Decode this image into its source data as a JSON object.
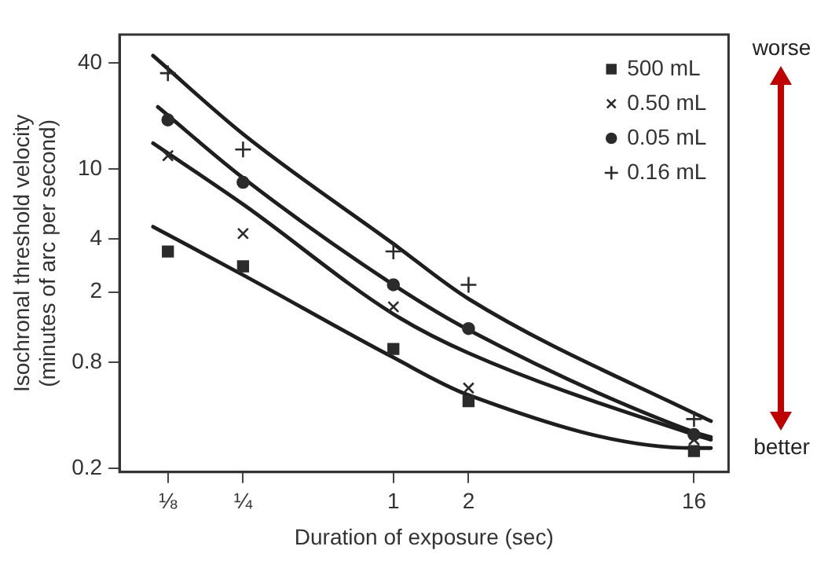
{
  "chart_data": {
    "type": "scatter",
    "xlabel": "Duration of exposure (sec)",
    "ylabel": "Isochronal threshold velocity\n(minutes of arc per second)",
    "log": "xy",
    "x": [
      0.125,
      0.25,
      1,
      2,
      16
    ],
    "xlim": [
      0.08,
      22
    ],
    "xticks": [
      {
        "value": 0.125,
        "label": "⅛"
      },
      {
        "value": 0.25,
        "label": "¼"
      },
      1,
      2,
      16
    ],
    "ylim": [
      0.19,
      58
    ],
    "yticks": [
      0.2,
      0.8,
      2,
      4,
      10,
      40
    ],
    "legend": "top right",
    "series": [
      {
        "name": "500 mL",
        "color": "#2b2b2b",
        "marker": "square",
        "values": [
          3.4,
          2.8,
          0.95,
          0.48,
          0.25
        ]
      },
      {
        "name": "0.50 mL",
        "color": "#2b2b2b",
        "marker": "x",
        "values": [
          11.9,
          4.3,
          1.65,
          0.57,
          0.29
        ]
      },
      {
        "name": "0.05 mL",
        "color": "#2b2b2b",
        "marker": "circle",
        "values": [
          19,
          8.4,
          2.2,
          1.24,
          0.31
        ]
      },
      {
        "name": "0.16 mL",
        "color": "#2b2b2b",
        "marker": "cross",
        "values": [
          35,
          12.9,
          3.4,
          2.2,
          0.38
        ]
      },
      {
        "type": "line",
        "color": "#1e1e1e",
        "marker": "none",
        "x": [
          0.109,
          0.25,
          1,
          2,
          16,
          18.7
        ],
        "values": [
          44,
          15.8,
          3.76,
          1.83,
          0.41,
          0.37
        ]
      },
      {
        "type": "line",
        "color": "#1e1e1e",
        "marker": "none",
        "x": [
          0.114,
          0.25,
          1,
          2,
          16,
          18.7
        ],
        "values": [
          22.5,
          8.9,
          2.2,
          1.22,
          0.32,
          0.3
        ]
      },
      {
        "type": "line",
        "color": "#1e1e1e",
        "marker": "none",
        "x": [
          0.109,
          0.25,
          1,
          2,
          16,
          18.7
        ],
        "values": [
          14,
          6.3,
          1.5,
          0.9,
          0.31,
          0.29
        ]
      },
      {
        "type": "line",
        "color": "#1e1e1e",
        "marker": "none",
        "x": [
          0.109,
          0.25,
          1,
          2,
          16,
          18.7
        ],
        "values": [
          4.7,
          2.5,
          0.85,
          0.52,
          0.26,
          0.26
        ]
      }
    ],
    "annotations": [
      "worse",
      "better"
    ]
  }
}
